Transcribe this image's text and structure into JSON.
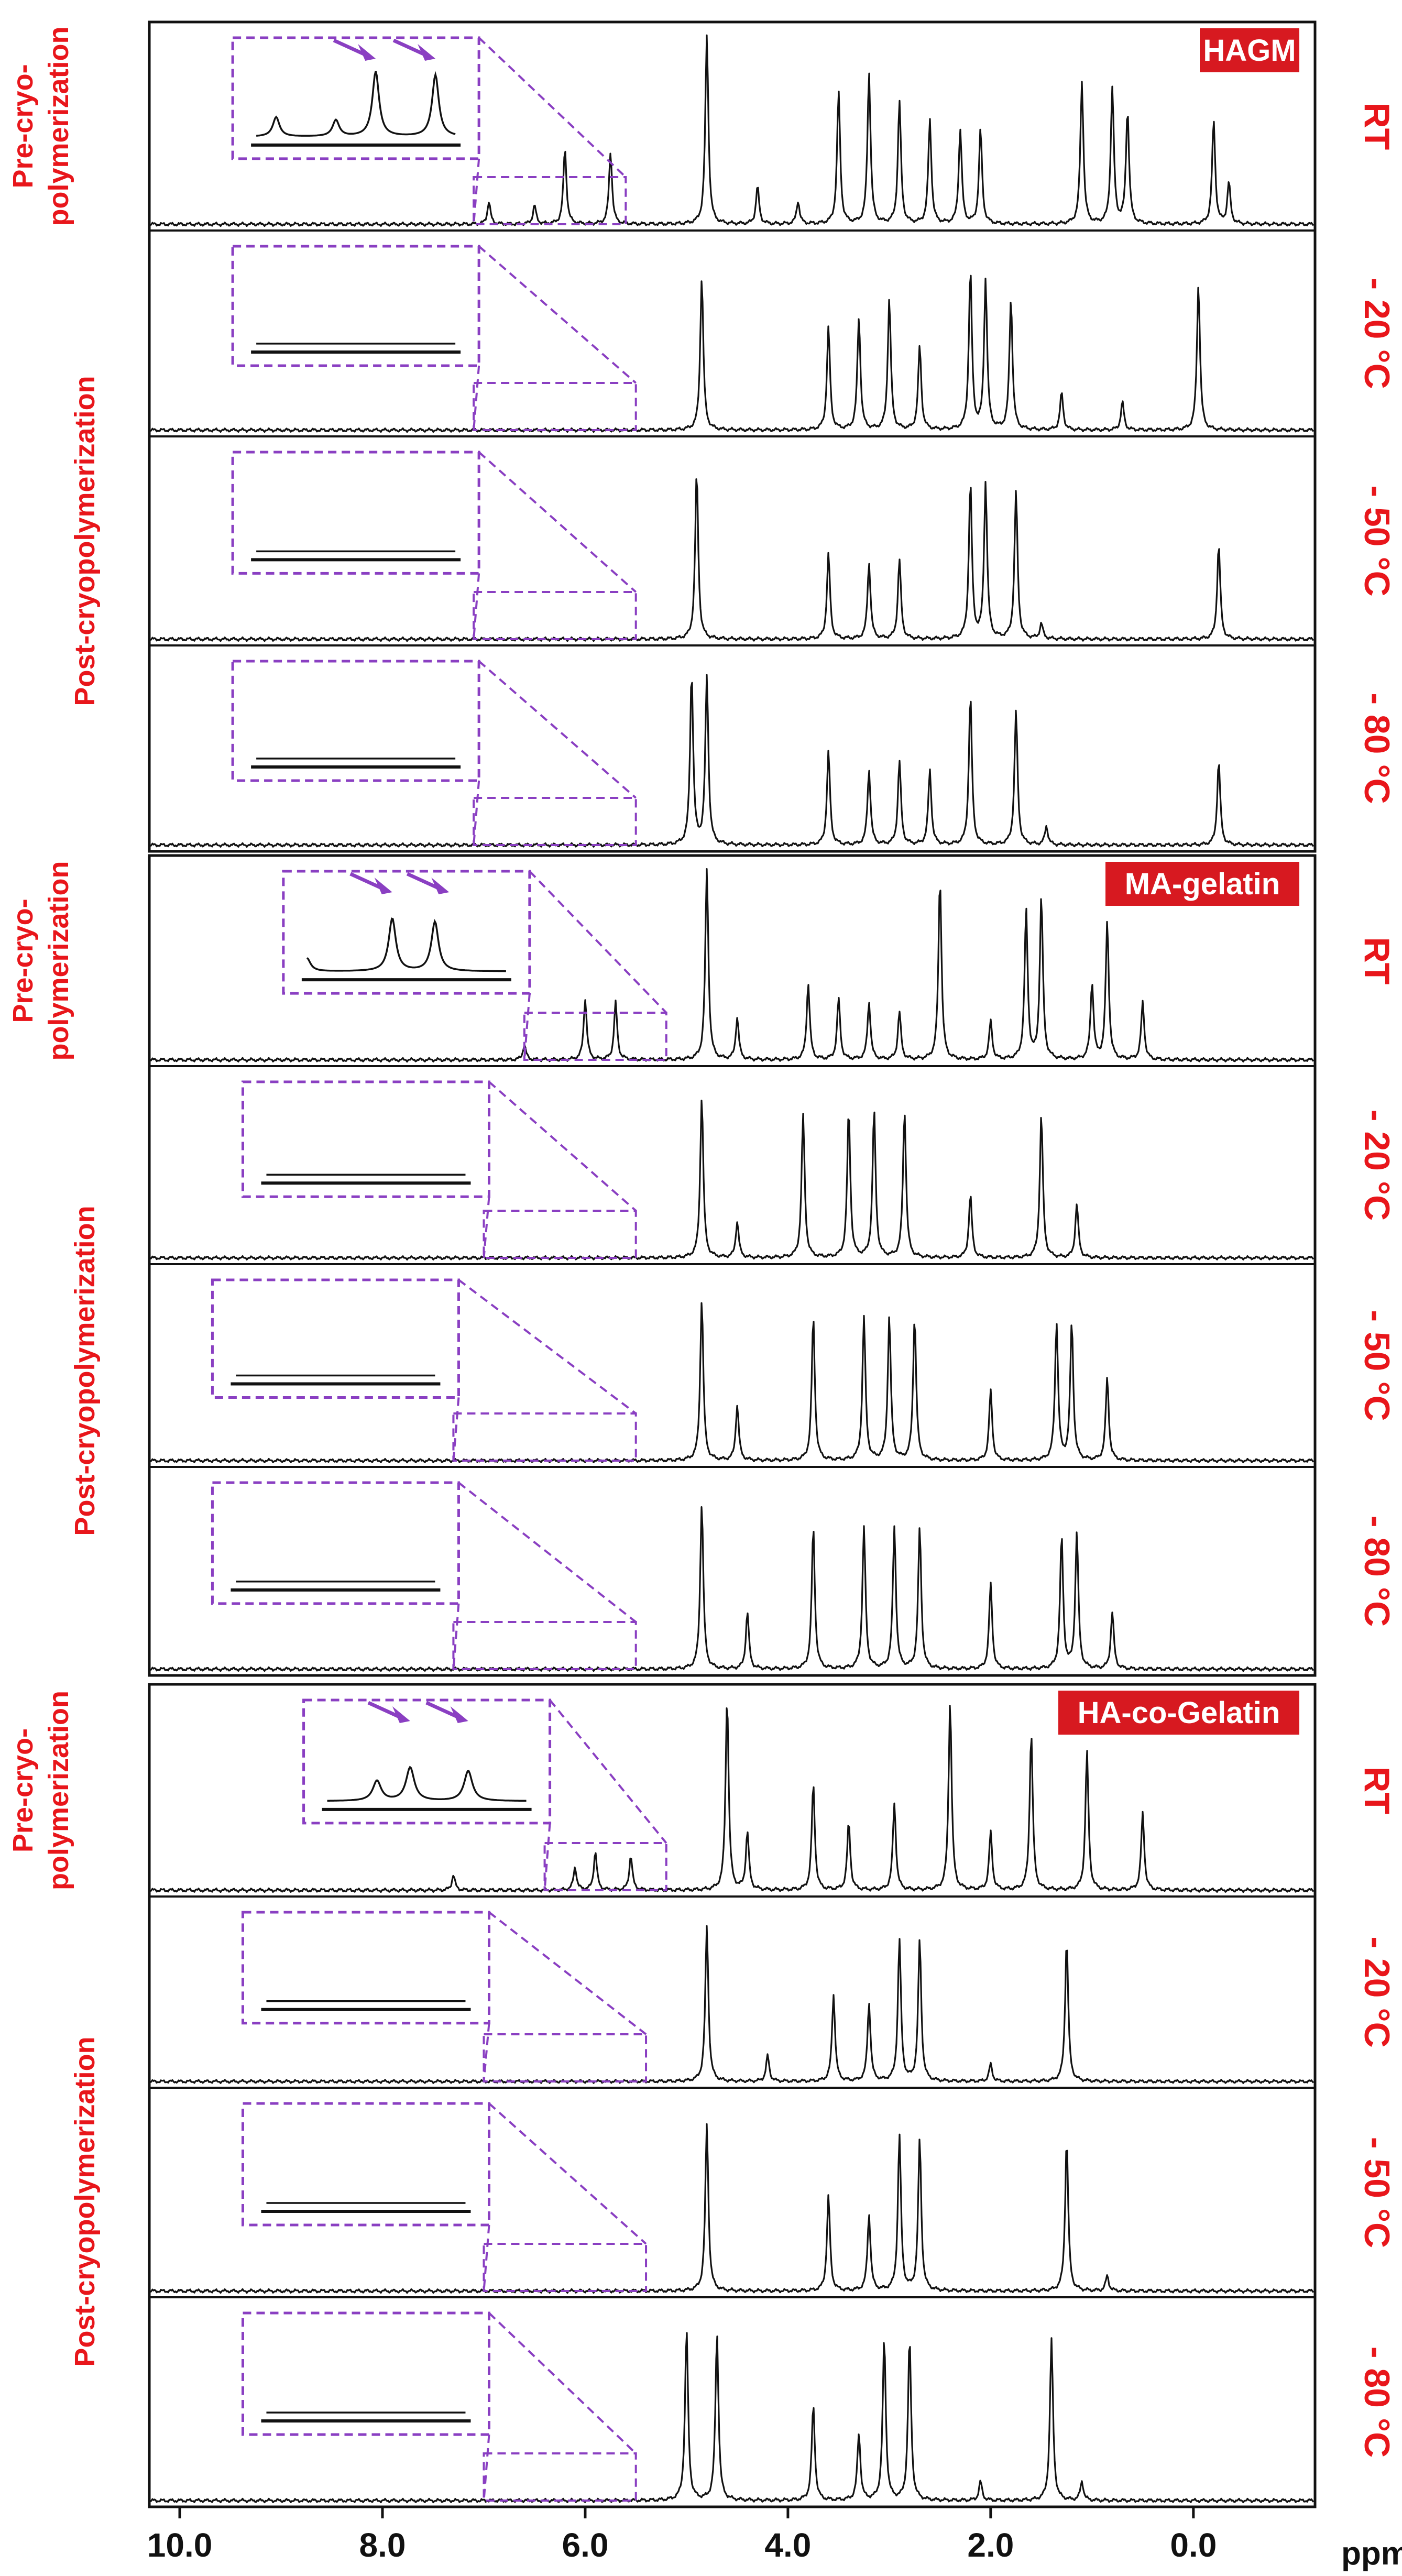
{
  "chart_data": {
    "type": "line",
    "figure_kind": "stacked 1H NMR spectra",
    "xlabel": "ppm",
    "x_axis": {
      "reversed": true,
      "xlim": [
        10.3,
        -1.2
      ],
      "ticks": [
        10.0,
        8.0,
        6.0,
        4.0,
        2.0,
        0.0
      ],
      "tick_labels": [
        "10.0",
        "8.0",
        "6.0",
        "4.0",
        "2.0",
        "0.0"
      ]
    },
    "colors": {
      "label_red": "#e8161b",
      "badge_red": "#d71920",
      "inset_purple": "#8a3fc2",
      "arrow_purple": "#8a3fc2",
      "trace": "#111111",
      "frame": "#111111"
    },
    "groups": [
      {
        "badge": "HAGM",
        "pre_label": [
          "Pre-cryo-",
          "polymerization"
        ],
        "post_label": "Post-cryopolymerization",
        "series": [
          {
            "name": "HAGM RT",
            "temp_label": "RT",
            "inset_range": [
              7.1,
              5.6
            ],
            "arrows": [
              6.2,
              5.75
            ],
            "peaks": [
              {
                "ppm": 6.95,
                "h": 0.12
              },
              {
                "ppm": 6.5,
                "h": 0.1
              },
              {
                "ppm": 6.2,
                "h": 0.4
              },
              {
                "ppm": 5.75,
                "h": 0.38
              },
              {
                "ppm": 4.8,
                "h": 1.0
              },
              {
                "ppm": 4.3,
                "h": 0.2
              },
              {
                "ppm": 3.9,
                "h": 0.12
              },
              {
                "ppm": 3.5,
                "h": 0.7
              },
              {
                "ppm": 3.2,
                "h": 0.8
              },
              {
                "ppm": 2.9,
                "h": 0.65
              },
              {
                "ppm": 2.6,
                "h": 0.55
              },
              {
                "ppm": 2.3,
                "h": 0.5
              },
              {
                "ppm": 2.1,
                "h": 0.5
              },
              {
                "ppm": 1.1,
                "h": 0.75
              },
              {
                "ppm": 0.8,
                "h": 0.72
              },
              {
                "ppm": 0.65,
                "h": 0.6
              },
              {
                "ppm": -0.2,
                "h": 0.55
              },
              {
                "ppm": -0.35,
                "h": 0.22
              }
            ]
          },
          {
            "name": "HAGM -20 °C",
            "temp_label": "- 20 °C",
            "inset_range": [
              7.1,
              5.5
            ],
            "arrows": [],
            "peaks": [
              {
                "ppm": 4.85,
                "h": 0.82
              },
              {
                "ppm": 3.6,
                "h": 0.55
              },
              {
                "ppm": 3.3,
                "h": 0.6
              },
              {
                "ppm": 3.0,
                "h": 0.7
              },
              {
                "ppm": 2.7,
                "h": 0.45
              },
              {
                "ppm": 2.2,
                "h": 0.85
              },
              {
                "ppm": 2.05,
                "h": 0.8
              },
              {
                "ppm": 1.8,
                "h": 0.7
              },
              {
                "ppm": 1.3,
                "h": 0.2
              },
              {
                "ppm": 0.7,
                "h": 0.15
              },
              {
                "ppm": -0.05,
                "h": 0.78
              }
            ]
          },
          {
            "name": "HAGM -50 °C",
            "temp_label": "- 50 °C",
            "inset_range": [
              7.1,
              5.5
            ],
            "arrows": [],
            "peaks": [
              {
                "ppm": 4.9,
                "h": 0.88
              },
              {
                "ppm": 3.6,
                "h": 0.45
              },
              {
                "ppm": 3.2,
                "h": 0.4
              },
              {
                "ppm": 2.9,
                "h": 0.42
              },
              {
                "ppm": 2.2,
                "h": 0.82
              },
              {
                "ppm": 2.05,
                "h": 0.82
              },
              {
                "ppm": 1.75,
                "h": 0.78
              },
              {
                "ppm": 1.5,
                "h": 0.08
              },
              {
                "ppm": -0.25,
                "h": 0.5
              }
            ]
          },
          {
            "name": "HAGM -80 °C",
            "temp_label": "- 80 °C",
            "inset_range": [
              7.1,
              5.5
            ],
            "arrows": [],
            "peaks": [
              {
                "ppm": 4.95,
                "h": 0.92
              },
              {
                "ppm": 4.8,
                "h": 0.9
              },
              {
                "ppm": 3.6,
                "h": 0.5
              },
              {
                "ppm": 3.2,
                "h": 0.4
              },
              {
                "ppm": 2.9,
                "h": 0.45
              },
              {
                "ppm": 2.6,
                "h": 0.4
              },
              {
                "ppm": 2.2,
                "h": 0.8
              },
              {
                "ppm": 1.75,
                "h": 0.72
              },
              {
                "ppm": 1.45,
                "h": 0.1
              },
              {
                "ppm": -0.25,
                "h": 0.45
              }
            ]
          }
        ]
      },
      {
        "badge": "MA-gelatin",
        "pre_label": [
          "Pre-cryo-",
          "polymerization"
        ],
        "post_label": "Post-cryopolymerization",
        "series": [
          {
            "name": "MA-gelatin RT",
            "temp_label": "RT",
            "inset_range": [
              6.6,
              5.2
            ],
            "arrows": [
              6.0,
              5.6
            ],
            "peaks": [
              {
                "ppm": 6.6,
                "h": 0.08
              },
              {
                "ppm": 6.0,
                "h": 0.32
              },
              {
                "ppm": 5.7,
                "h": 0.3
              },
              {
                "ppm": 4.8,
                "h": 1.0
              },
              {
                "ppm": 4.5,
                "h": 0.22
              },
              {
                "ppm": 3.8,
                "h": 0.4
              },
              {
                "ppm": 3.5,
                "h": 0.32
              },
              {
                "ppm": 3.2,
                "h": 0.3
              },
              {
                "ppm": 2.9,
                "h": 0.25
              },
              {
                "ppm": 2.5,
                "h": 0.95
              },
              {
                "ppm": 2.0,
                "h": 0.2
              },
              {
                "ppm": 1.65,
                "h": 0.78
              },
              {
                "ppm": 1.5,
                "h": 0.85
              },
              {
                "ppm": 1.0,
                "h": 0.4
              },
              {
                "ppm": 0.85,
                "h": 0.72
              },
              {
                "ppm": 0.5,
                "h": 0.3
              }
            ]
          },
          {
            "name": "MA-gelatin -20 °C",
            "temp_label": "- 20 °C",
            "inset_range": [
              7.0,
              5.5
            ],
            "arrows": [],
            "peaks": [
              {
                "ppm": 4.85,
                "h": 0.9
              },
              {
                "ppm": 4.5,
                "h": 0.2
              },
              {
                "ppm": 3.85,
                "h": 0.8
              },
              {
                "ppm": 3.4,
                "h": 0.82
              },
              {
                "ppm": 3.15,
                "h": 0.82
              },
              {
                "ppm": 2.85,
                "h": 0.82
              },
              {
                "ppm": 2.2,
                "h": 0.35
              },
              {
                "ppm": 1.5,
                "h": 0.8
              },
              {
                "ppm": 1.15,
                "h": 0.3
              }
            ]
          },
          {
            "name": "MA-gelatin -50 °C",
            "temp_label": "- 50 °C",
            "inset_range": [
              7.3,
              5.5
            ],
            "arrows": [],
            "peaks": [
              {
                "ppm": 4.85,
                "h": 0.88
              },
              {
                "ppm": 4.5,
                "h": 0.3
              },
              {
                "ppm": 3.75,
                "h": 0.78
              },
              {
                "ppm": 3.25,
                "h": 0.78
              },
              {
                "ppm": 3.0,
                "h": 0.78
              },
              {
                "ppm": 2.75,
                "h": 0.78
              },
              {
                "ppm": 2.0,
                "h": 0.38
              },
              {
                "ppm": 1.35,
                "h": 0.75
              },
              {
                "ppm": 1.2,
                "h": 0.75
              },
              {
                "ppm": 0.85,
                "h": 0.45
              }
            ]
          },
          {
            "name": "MA-gelatin -80 °C",
            "temp_label": "- 80 °C",
            "inset_range": [
              7.3,
              5.5
            ],
            "arrows": [],
            "peaks": [
              {
                "ppm": 4.85,
                "h": 0.88
              },
              {
                "ppm": 4.4,
                "h": 0.3
              },
              {
                "ppm": 3.75,
                "h": 0.75
              },
              {
                "ppm": 3.25,
                "h": 0.75
              },
              {
                "ppm": 2.95,
                "h": 0.75
              },
              {
                "ppm": 2.7,
                "h": 0.75
              },
              {
                "ppm": 2.0,
                "h": 0.45
              },
              {
                "ppm": 1.3,
                "h": 0.7
              },
              {
                "ppm": 1.15,
                "h": 0.72
              },
              {
                "ppm": 0.8,
                "h": 0.3
              }
            ]
          }
        ]
      },
      {
        "badge": "HA-co-Gelatin",
        "pre_label": [
          "Pre-cryo-",
          "polymerization"
        ],
        "post_label": "Post-cryopolymerization",
        "series": [
          {
            "name": "HA-co-Gelatin RT",
            "temp_label": "RT",
            "inset_range": [
              6.4,
              5.2
            ],
            "arrows": [
              5.9,
              5.55
            ],
            "peaks": [
              {
                "ppm": 7.3,
                "h": 0.08
              },
              {
                "ppm": 6.1,
                "h": 0.12
              },
              {
                "ppm": 5.9,
                "h": 0.2
              },
              {
                "ppm": 5.55,
                "h": 0.18
              },
              {
                "ppm": 4.6,
                "h": 1.0
              },
              {
                "ppm": 4.4,
                "h": 0.3
              },
              {
                "ppm": 3.75,
                "h": 0.55
              },
              {
                "ppm": 3.4,
                "h": 0.35
              },
              {
                "ppm": 2.95,
                "h": 0.45
              },
              {
                "ppm": 2.4,
                "h": 0.98
              },
              {
                "ppm": 2.0,
                "h": 0.3
              },
              {
                "ppm": 1.6,
                "h": 0.82
              },
              {
                "ppm": 1.05,
                "h": 0.72
              },
              {
                "ppm": 0.5,
                "h": 0.4
              }
            ]
          },
          {
            "name": "HA-co-Gelatin -20 °C",
            "temp_label": "- 20 °C",
            "inset_range": [
              7.0,
              5.4
            ],
            "arrows": [],
            "peaks": [
              {
                "ppm": 4.8,
                "h": 0.9
              },
              {
                "ppm": 4.2,
                "h": 0.15
              },
              {
                "ppm": 3.55,
                "h": 0.5
              },
              {
                "ppm": 3.2,
                "h": 0.45
              },
              {
                "ppm": 2.9,
                "h": 0.82
              },
              {
                "ppm": 2.7,
                "h": 0.82
              },
              {
                "ppm": 2.0,
                "h": 0.1
              },
              {
                "ppm": 1.25,
                "h": 0.82
              }
            ]
          },
          {
            "name": "HA-co-Gelatin -50 °C",
            "temp_label": "- 50 °C",
            "inset_range": [
              7.0,
              5.4
            ],
            "arrows": [],
            "peaks": [
              {
                "ppm": 4.8,
                "h": 0.88
              },
              {
                "ppm": 3.6,
                "h": 0.5
              },
              {
                "ppm": 3.2,
                "h": 0.4
              },
              {
                "ppm": 2.9,
                "h": 0.82
              },
              {
                "ppm": 2.7,
                "h": 0.8
              },
              {
                "ppm": 1.25,
                "h": 0.8
              },
              {
                "ppm": 0.85,
                "h": 0.08
              }
            ]
          },
          {
            "name": "HA-co-Gelatin -80 °C",
            "temp_label": "- 80 °C",
            "inset_range": [
              7.0,
              5.5
            ],
            "arrows": [],
            "peaks": [
              {
                "ppm": 5.0,
                "h": 0.9
              },
              {
                "ppm": 4.7,
                "h": 0.88
              },
              {
                "ppm": 3.75,
                "h": 0.5
              },
              {
                "ppm": 3.3,
                "h": 0.35
              },
              {
                "ppm": 3.05,
                "h": 0.85
              },
              {
                "ppm": 2.8,
                "h": 0.85
              },
              {
                "ppm": 2.1,
                "h": 0.1
              },
              {
                "ppm": 1.4,
                "h": 0.85
              },
              {
                "ppm": 1.1,
                "h": 0.1
              }
            ]
          }
        ]
      }
    ]
  }
}
